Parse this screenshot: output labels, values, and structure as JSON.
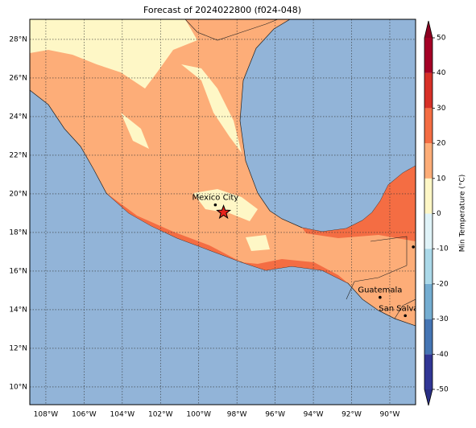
{
  "map": {
    "title": "Forecast of 2024022800 (f024-048)",
    "xlim": [
      -108.84,
      -88.65
    ],
    "ylim": [
      9.08,
      29.04
    ],
    "xticks": [
      {
        "value": -108,
        "label": "108°W"
      },
      {
        "value": -106,
        "label": "106°W"
      },
      {
        "value": -104,
        "label": "104°W"
      },
      {
        "value": -102,
        "label": "102°W"
      },
      {
        "value": -100,
        "label": "100°W"
      },
      {
        "value": -98,
        "label": "98°W"
      },
      {
        "value": -96,
        "label": "96°W"
      },
      {
        "value": -94,
        "label": "94°W"
      },
      {
        "value": -92,
        "label": "92°W"
      },
      {
        "value": -90,
        "label": "90°W"
      }
    ],
    "yticks": [
      {
        "value": 10,
        "label": "10°N"
      },
      {
        "value": 12,
        "label": "12°N"
      },
      {
        "value": 14,
        "label": "14°N"
      },
      {
        "value": 16,
        "label": "16°N"
      },
      {
        "value": 18,
        "label": "18°N"
      },
      {
        "value": 20,
        "label": "20°N"
      },
      {
        "value": 22,
        "label": "22°N"
      },
      {
        "value": 24,
        "label": "24°N"
      },
      {
        "value": 26,
        "label": "26°N"
      },
      {
        "value": 28,
        "label": "28°N"
      }
    ],
    "grid": true,
    "cities": [
      {
        "name": "Mexico City",
        "lon": -99.13,
        "lat": 19.43
      },
      {
        "name": "Guatemala",
        "lon": -90.51,
        "lat": 14.64
      },
      {
        "name": "San Salvador",
        "lon": -89.19,
        "lat": 13.69
      },
      {
        "lon": -88.77,
        "lat": 17.25
      }
    ],
    "star": {
      "lon": -98.7,
      "lat": 19.04,
      "color": "#e8221b"
    },
    "colorbar": {
      "label": "Min Temperature (°C)",
      "lim": [
        -50,
        50
      ],
      "ticks": [
        -50,
        -40,
        -30,
        -20,
        -10,
        0,
        10,
        20,
        30,
        40,
        50
      ],
      "colors": [
        "#313695",
        "#4575b4",
        "#74add1",
        "#abd9e9",
        "#e0f3f8",
        "#fef7c6",
        "#fdad78",
        "#f46d43",
        "#d73027",
        "#a50026"
      ],
      "extend_colors": [
        "#2a2f85",
        "#8c0020"
      ]
    }
  }
}
